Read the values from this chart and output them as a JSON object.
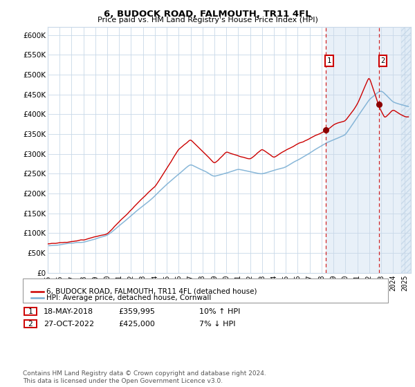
{
  "title": "6, BUDOCK ROAD, FALMOUTH, TR11 4FL",
  "subtitle": "Price paid vs. HM Land Registry's House Price Index (HPI)",
  "ylim": [
    0,
    620000
  ],
  "yticks": [
    0,
    50000,
    100000,
    150000,
    200000,
    250000,
    300000,
    350000,
    400000,
    450000,
    500000,
    550000,
    600000
  ],
  "ytick_labels": [
    "£0",
    "£50K",
    "£100K",
    "£150K",
    "£200K",
    "£250K",
    "£300K",
    "£350K",
    "£400K",
    "£450K",
    "£500K",
    "£550K",
    "£600K"
  ],
  "xlim_start": 1995,
  "xlim_end": 2025.5,
  "red_color": "#cc0000",
  "blue_color": "#7bafd4",
  "blue_fill_color": "#dce9f5",
  "plot_bg_color": "#ffffff",
  "grid_color": "#c8d8e8",
  "annotation1_date": 2018.37,
  "annotation1_value": 359995,
  "annotation2_date": 2022.82,
  "annotation2_value": 425000,
  "legend_label1": "6, BUDOCK ROAD, FALMOUTH, TR11 4FL (detached house)",
  "legend_label2": "HPI: Average price, detached house, Cornwall",
  "table_row1": [
    "1",
    "18-MAY-2018",
    "£359,995",
    "10% ↑ HPI"
  ],
  "table_row2": [
    "2",
    "27-OCT-2022",
    "£425,000",
    "7% ↓ HPI"
  ],
  "footnote": "Contains HM Land Registry data © Crown copyright and database right 2024.\nThis data is licensed under the Open Government Licence v3.0."
}
